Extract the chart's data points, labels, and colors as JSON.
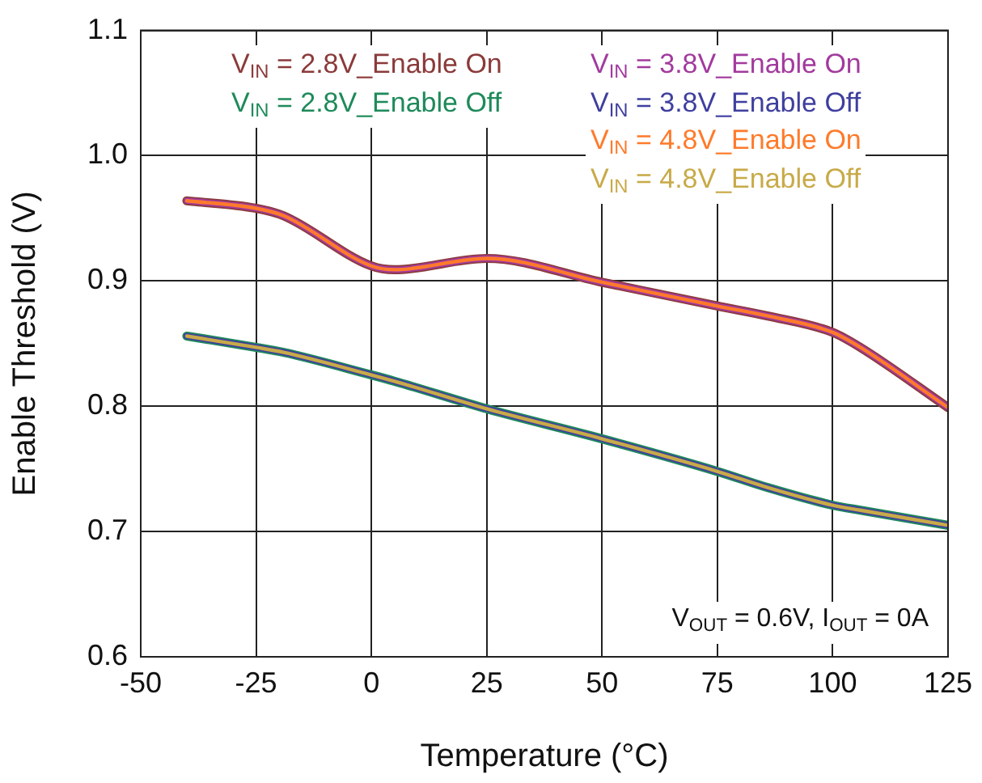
{
  "chart_data": {
    "type": "line",
    "xlabel": "Temperature (°C)",
    "ylabel": "Enable Threshold (V)",
    "x": [
      -40,
      -25,
      -19,
      0,
      5,
      25,
      50,
      75,
      86,
      100,
      106,
      125
    ],
    "series": [
      {
        "name": "V$_{IN}$ = 2.8V_Enable On",
        "color": "#8b3a3a",
        "values": [
          0.964,
          0.958,
          0.952,
          0.912,
          0.909,
          0.918,
          0.899,
          0.88,
          0.872,
          0.859,
          0.847,
          0.799
        ]
      },
      {
        "name": "V$_{IN}$ = 2.8V_Enable Off",
        "color": "#1e8a5a",
        "values": [
          0.856,
          0.847,
          0.843,
          0.825,
          0.82,
          0.798,
          0.774,
          0.748,
          0.735,
          0.721,
          0.717,
          0.705
        ]
      },
      {
        "name": "V$_{IN}$ = 3.8V_Enable On",
        "color": "#a23a9e",
        "values": [
          0.964,
          0.958,
          0.952,
          0.912,
          0.909,
          0.918,
          0.899,
          0.88,
          0.872,
          0.859,
          0.847,
          0.799
        ]
      },
      {
        "name": "V$_{IN}$ = 3.8V_Enable Off",
        "color": "#3f3f9f",
        "values": [
          0.856,
          0.847,
          0.843,
          0.825,
          0.82,
          0.798,
          0.774,
          0.748,
          0.735,
          0.721,
          0.717,
          0.705
        ]
      },
      {
        "name": "V$_{IN}$ = 4.8V_Enable On",
        "color": "#ff7a2a",
        "values": [
          0.964,
          0.958,
          0.952,
          0.912,
          0.909,
          0.918,
          0.899,
          0.88,
          0.872,
          0.859,
          0.847,
          0.799
        ]
      },
      {
        "name": "V$_{IN}$ = 4.8V_Enable Off",
        "color": "#c8aa48",
        "values": [
          0.856,
          0.847,
          0.843,
          0.825,
          0.82,
          0.798,
          0.774,
          0.748,
          0.735,
          0.721,
          0.717,
          0.705
        ]
      }
    ],
    "xlim": [
      -50,
      125
    ],
    "xticks": [
      -50,
      -25,
      0,
      25,
      50,
      75,
      100,
      125
    ],
    "ylim": [
      0.6,
      1.1
    ],
    "yticks": [
      {
        "value": 0.6,
        "label": "0.6"
      },
      {
        "value": 0.7,
        "label": "0.7"
      },
      {
        "value": 0.8,
        "label": "0.8"
      },
      {
        "value": 0.9,
        "label": "0.9"
      },
      {
        "value": 1.0,
        "label": "1.0"
      },
      {
        "value": 1.1,
        "label": "1.1"
      }
    ],
    "grid": true,
    "legend": "top right",
    "marker": "none",
    "line_style": "solid",
    "annotations": [
      "V$_{OUT}$ = 0.6V, I$_{OUT}$ = 0A"
    ]
  }
}
